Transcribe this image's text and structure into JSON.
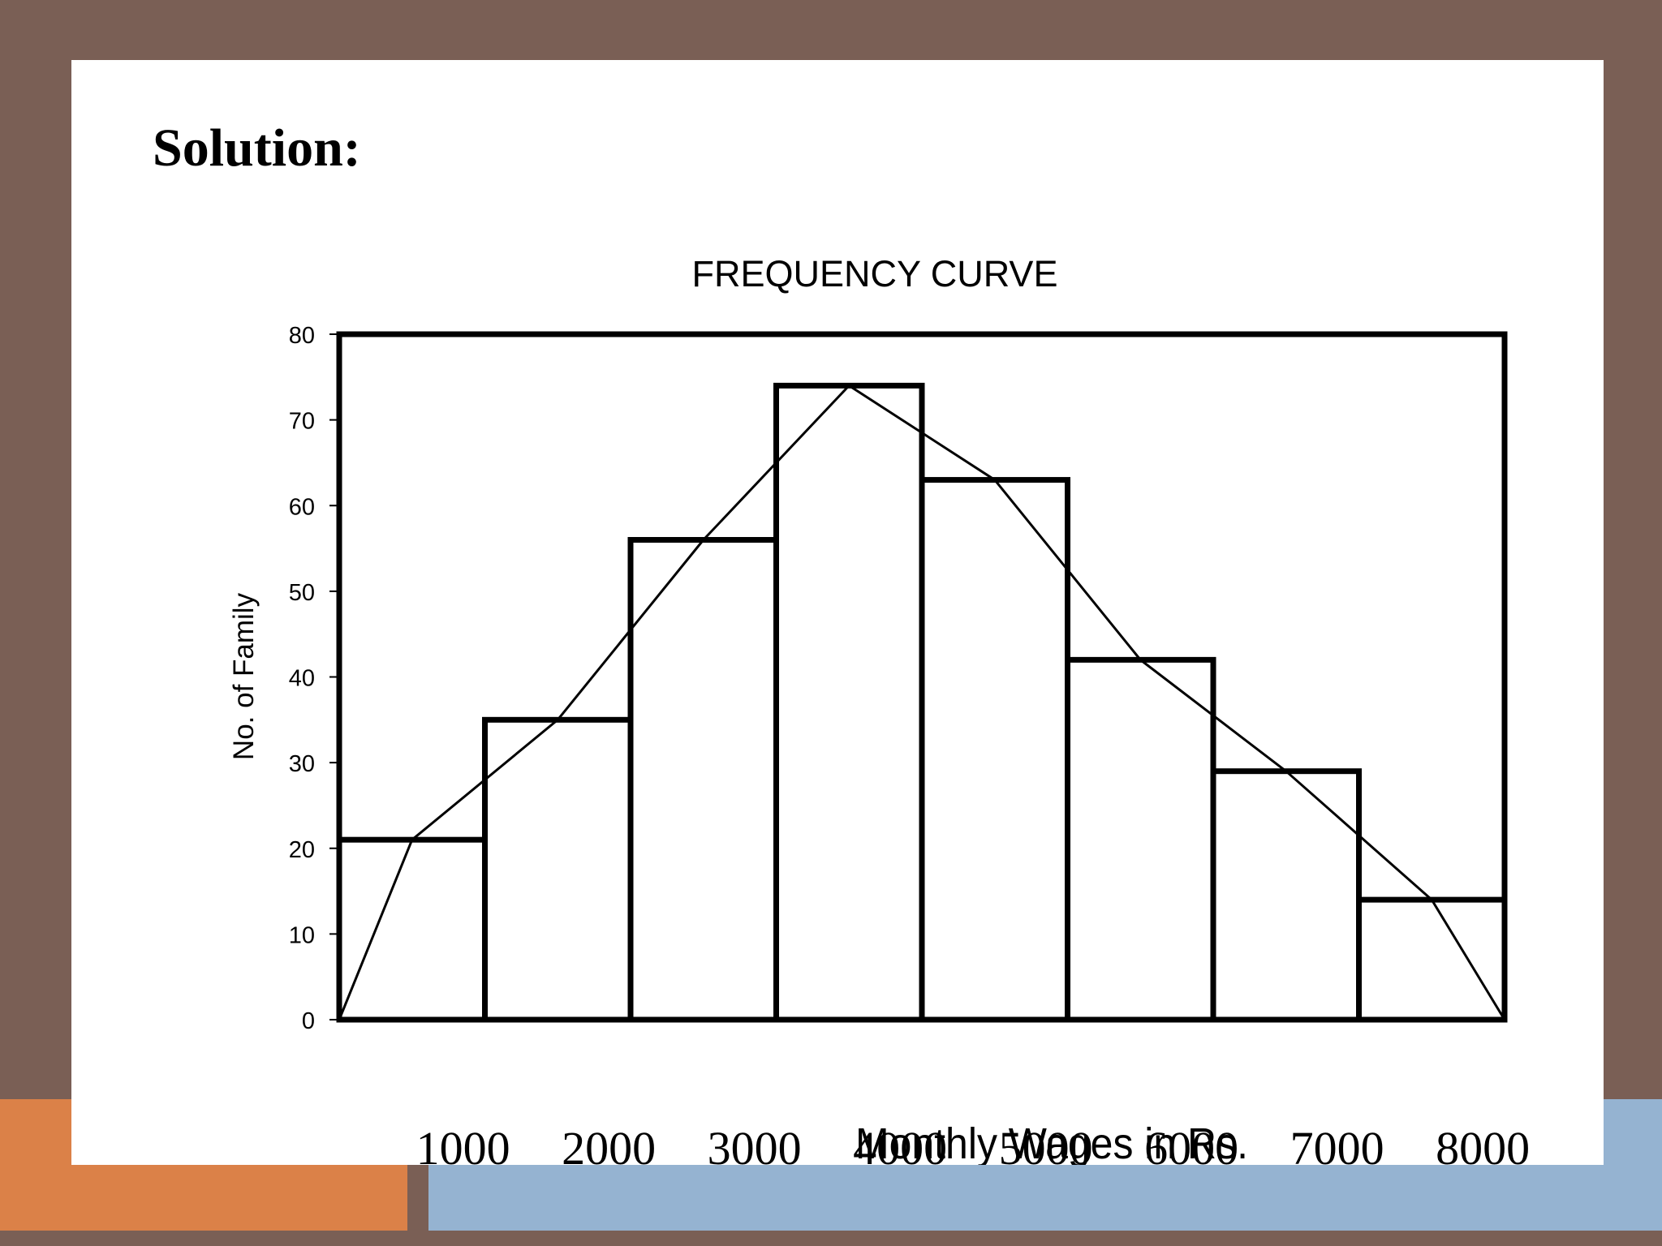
{
  "slide": {
    "heading": "Solution:"
  },
  "colors": {
    "frame": "#7a5f55",
    "accent_orange": "#db8148",
    "accent_blue": "#95b3d1",
    "bars_outline": "#000000",
    "curve": "#000000"
  },
  "chart_data": {
    "type": "bar",
    "title": "FREQUENCY CURVE",
    "xlabel": "Monthly Wages in Rs.",
    "ylabel": "No. of Family",
    "x_tick_labels": [
      "1000",
      "2000",
      "3000",
      "4000",
      "5000",
      "6000",
      "7000",
      "8000"
    ],
    "y_ticks": [
      0,
      10,
      20,
      30,
      40,
      50,
      60,
      70,
      80
    ],
    "ylim": [
      0,
      80
    ],
    "grid": false,
    "values": [
      21,
      35,
      56,
      74,
      63,
      42,
      29,
      14
    ],
    "frequency_curve_y": [
      0,
      21,
      35,
      56,
      74,
      63,
      42,
      29,
      14,
      0
    ]
  }
}
